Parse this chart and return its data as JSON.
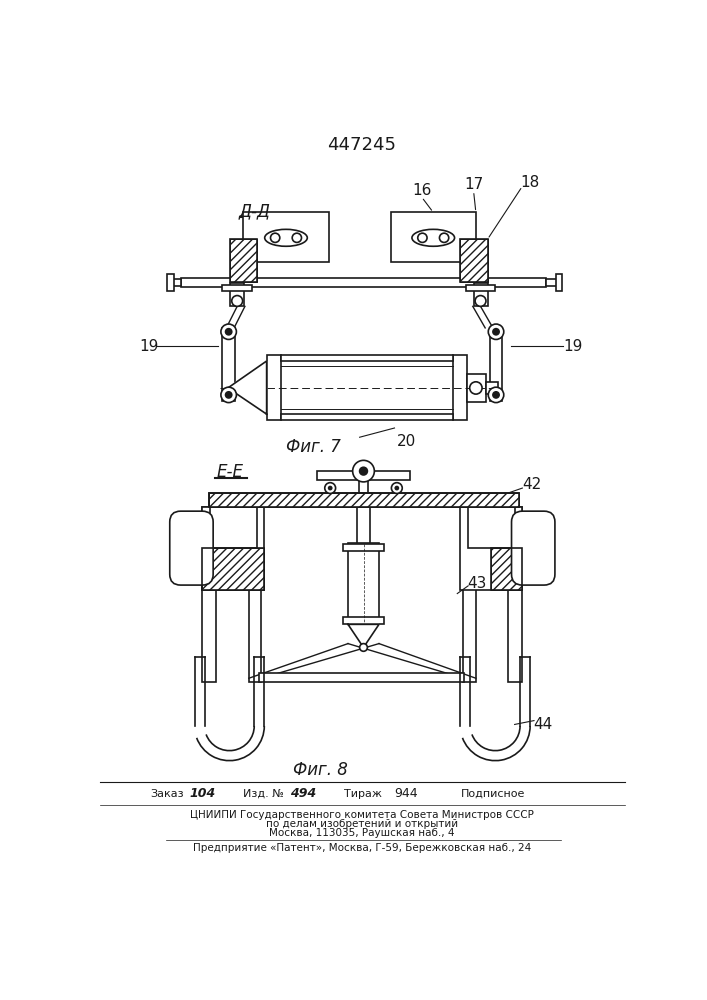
{
  "patent_number": "447245",
  "fig7_label": "Фиг. 7",
  "fig8_label": "Фиг. 8",
  "section_d_label": "Д-Д",
  "section_e_label": "Е-Е",
  "footer_line1_a": "Заказ",
  "footer_line1_b": "104",
  "footer_line1_c": "Изд. №",
  "footer_line1_d": "494",
  "footer_line1_e": "Тираж",
  "footer_line1_f": "944",
  "footer_line1_g": "Подписное",
  "footer_line2": "ЦНИИПИ Государственного комитета Совета Министров СССР",
  "footer_line3": "по делам изобретений и открытий",
  "footer_line4": "Москва, 113035, Раушская наб., 4",
  "footer_line5": "Предприятие «Патент», Москва, Г-59, Бережковская наб., 24",
  "bg_color": "#ffffff",
  "line_color": "#1a1a1a",
  "label_16": "16",
  "label_17": "17",
  "label_18": "18",
  "label_19_left": "19",
  "label_19_right": "19",
  "label_20": "20",
  "label_42": "42",
  "label_43": "43",
  "label_44": "44"
}
